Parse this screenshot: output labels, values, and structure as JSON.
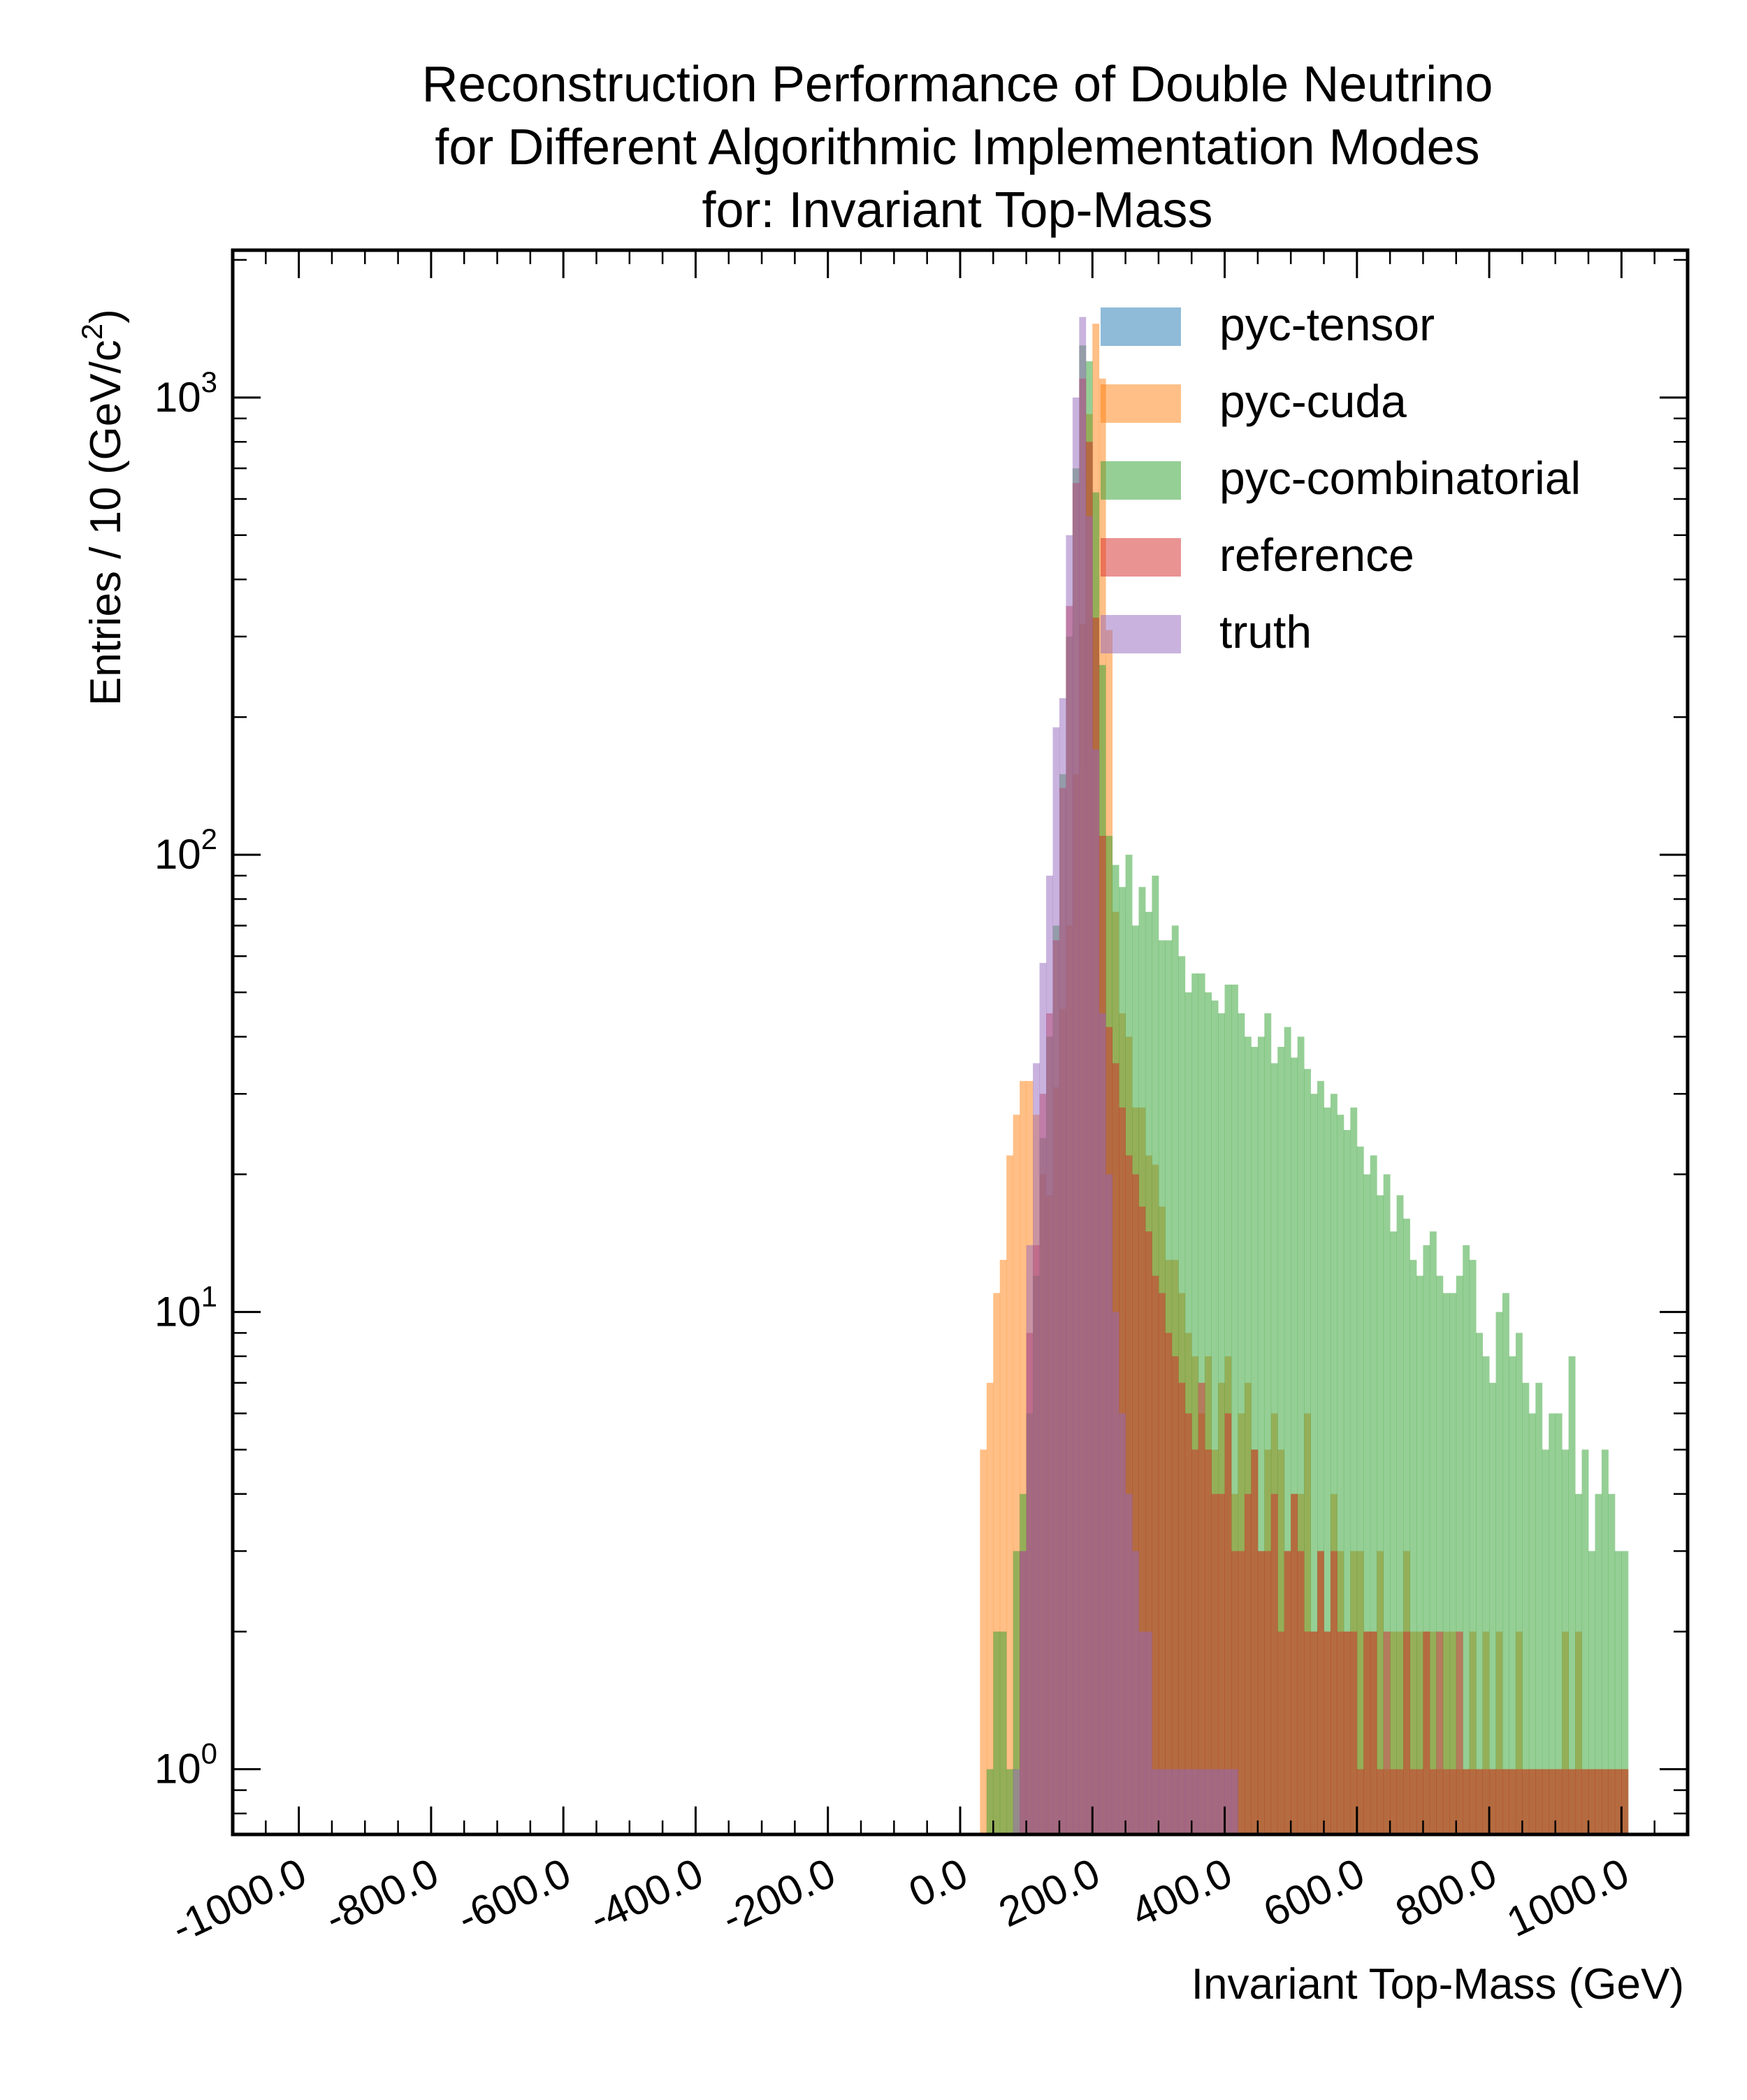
{
  "chart_data": {
    "type": "histogram",
    "title_lines": [
      "Reconstruction Performance of Double Neutrino",
      "for Different Algorithmic Implementation Modes",
      "for: Invariant Top-Mass"
    ],
    "xlabel": "Invariant Top-Mass (GeV)",
    "ylabel": "Entries  / 10 (GeV/c",
    "ylabel_sup": "2",
    "ylabel_close": ")",
    "xlim": [
      -1100,
      1100
    ],
    "ylim": [
      0.72,
      2100
    ],
    "yscale": "log",
    "x_ticks": [
      -1000,
      -800,
      -600,
      -400,
      -200,
      0,
      200,
      400,
      600,
      800,
      1000
    ],
    "x_tick_labels": [
      "-1000.0",
      "-800.0",
      "-600.0",
      "-400.0",
      "-200.0",
      "0.0",
      "200.0",
      "400.0",
      "600.0",
      "800.0",
      "1000.0"
    ],
    "y_ticks": [
      1,
      10,
      100,
      1000
    ],
    "y_tick_base": "10",
    "y_tick_exponents": [
      "0",
      "1",
      "2",
      "3"
    ],
    "grid": false,
    "legend_position": "top-right",
    "bin_width": 10,
    "x_range": [
      20,
      1000
    ],
    "series": [
      {
        "name": "pyc-tensor",
        "color": "#1f77b4",
        "values": []
      },
      {
        "name": "pyc-cuda",
        "color": "#ff7f0e",
        "values": [
          0,
          5,
          7,
          11,
          13,
          22,
          27,
          32,
          32,
          27,
          20,
          18,
          31,
          46,
          70,
          150,
          320,
          920,
          1450,
          1100,
          310,
          75,
          45,
          40,
          28,
          28,
          22,
          21,
          17,
          13,
          13,
          11,
          9,
          8,
          6,
          8,
          5,
          7,
          8,
          4,
          6,
          7,
          5,
          3,
          5,
          6,
          5,
          3,
          4,
          4,
          6,
          2,
          3,
          2,
          4,
          3,
          2,
          3,
          3,
          2,
          2,
          3,
          1,
          2,
          2,
          3,
          2,
          2,
          2,
          2,
          1,
          2,
          2,
          1,
          1,
          2,
          1,
          2,
          1,
          2,
          1,
          1,
          2,
          1,
          1,
          1,
          1,
          1,
          1,
          2,
          1,
          2,
          1,
          1,
          1,
          1,
          1,
          1,
          1
        ]
      },
      {
        "name": "pyc-combinatorial",
        "color": "#2ca02c",
        "values": [
          0,
          0,
          1,
          2,
          2,
          1,
          3,
          4,
          6,
          12,
          24,
          40,
          70,
          150,
          300,
          700,
          1300,
          1200,
          620,
          260,
          110,
          95,
          85,
          100,
          70,
          85,
          75,
          90,
          65,
          65,
          70,
          60,
          50,
          55,
          55,
          50,
          48,
          45,
          52,
          52,
          45,
          40,
          38,
          40,
          45,
          35,
          38,
          42,
          36,
          40,
          34,
          30,
          32,
          28,
          30,
          27,
          25,
          28,
          23,
          20,
          22,
          18,
          20,
          15,
          18,
          16,
          13,
          12,
          14,
          15,
          12,
          11,
          11,
          12,
          14,
          13,
          9,
          8,
          7,
          10,
          11,
          8,
          9,
          7,
          6,
          7,
          5,
          6,
          6,
          5,
          8,
          4,
          5,
          3,
          4,
          5,
          4,
          3,
          3
        ]
      },
      {
        "name": "reference",
        "color": "#d62728",
        "values": [
          0,
          0,
          0,
          0,
          0,
          0,
          0,
          3,
          9,
          14,
          30,
          45,
          65,
          140,
          350,
          650,
          1100,
          800,
          330,
          110,
          42,
          35,
          28,
          22,
          20,
          17,
          15,
          12,
          11,
          9,
          8,
          7,
          6,
          5,
          7,
          5,
          4,
          4,
          6,
          3,
          3,
          4,
          5,
          3,
          3,
          4,
          2,
          3,
          4,
          3,
          2,
          2,
          3,
          2,
          3,
          2,
          2,
          2,
          1,
          2,
          2,
          1,
          2,
          1,
          1,
          2,
          1,
          1,
          2,
          1,
          2,
          1,
          1,
          2,
          1,
          1,
          1,
          1,
          1,
          1,
          1,
          1,
          1,
          1,
          1,
          1,
          1,
          1,
          1,
          1,
          1,
          1,
          1,
          1,
          1,
          1,
          1,
          1,
          1
        ]
      },
      {
        "name": "truth",
        "color": "#9467bd",
        "values": [
          0,
          0,
          0,
          0,
          0,
          0,
          1,
          3,
          14,
          35,
          58,
          90,
          190,
          220,
          500,
          1000,
          1500,
          550,
          170,
          45,
          20,
          10,
          6,
          4,
          3,
          2,
          2,
          1,
          1,
          1,
          1,
          1,
          1,
          1,
          1,
          1,
          1,
          1,
          1,
          1,
          0,
          0,
          0,
          0,
          0,
          0,
          0,
          0,
          0,
          0,
          0,
          0,
          0,
          0,
          0,
          0,
          0,
          0,
          0,
          0,
          0,
          0,
          0,
          0,
          0,
          0,
          0,
          0,
          0,
          0,
          0,
          0,
          0,
          0,
          0,
          0,
          0,
          0,
          0,
          0,
          0,
          0,
          0,
          0,
          0,
          0,
          0,
          0,
          0,
          0,
          0,
          0,
          0,
          0,
          0,
          0,
          0,
          0,
          0
        ]
      }
    ]
  }
}
